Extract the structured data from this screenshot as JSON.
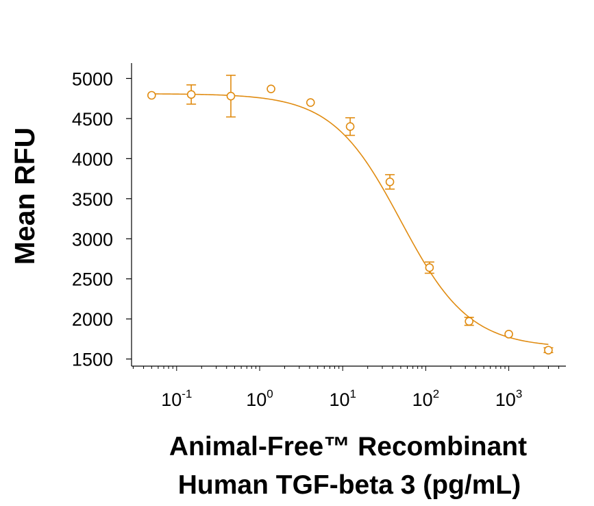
{
  "chart_data": {
    "type": "scatter",
    "title": "",
    "xlabel_lines": [
      "Animal-Free™ Recombinant",
      "Human TGF-beta 3 (pg/mL)"
    ],
    "ylabel": "Mean RFU",
    "x_scale": "log",
    "xlim": [
      0.03,
      5000
    ],
    "ylim": [
      1450,
      5250
    ],
    "y_ticks": [
      1500,
      2000,
      2500,
      3000,
      3500,
      4000,
      4500,
      5000
    ],
    "x_ticks": [
      {
        "value": 0.1,
        "base": "10",
        "exp": "-1"
      },
      {
        "value": 1,
        "base": "10",
        "exp": "0"
      },
      {
        "value": 10,
        "base": "10",
        "exp": "1"
      },
      {
        "value": 100,
        "base": "10",
        "exp": "2"
      },
      {
        "value": 1000,
        "base": "10",
        "exp": "3"
      }
    ],
    "grid": false,
    "legend": "none",
    "color": "#E08B10",
    "series": [
      {
        "points": [
          {
            "x": 0.05,
            "y": 4790,
            "err": 0
          },
          {
            "x": 0.15,
            "y": 4800,
            "err": 120
          },
          {
            "x": 0.45,
            "y": 4780,
            "err": 260
          },
          {
            "x": 1.37,
            "y": 4870,
            "err": 0
          },
          {
            "x": 4.1,
            "y": 4700,
            "err": 0
          },
          {
            "x": 12.3,
            "y": 4400,
            "err": 110
          },
          {
            "x": 37,
            "y": 3710,
            "err": 90
          },
          {
            "x": 111,
            "y": 2640,
            "err": 70
          },
          {
            "x": 333,
            "y": 1970,
            "err": 50
          },
          {
            "x": 1000,
            "y": 1810,
            "err": 0
          },
          {
            "x": 3000,
            "y": 1610,
            "err": 30
          }
        ],
        "fit": {
          "model": "4PL",
          "top": 4810,
          "bottom": 1640,
          "ec50": 50,
          "hill": 1.05
        }
      }
    ]
  }
}
